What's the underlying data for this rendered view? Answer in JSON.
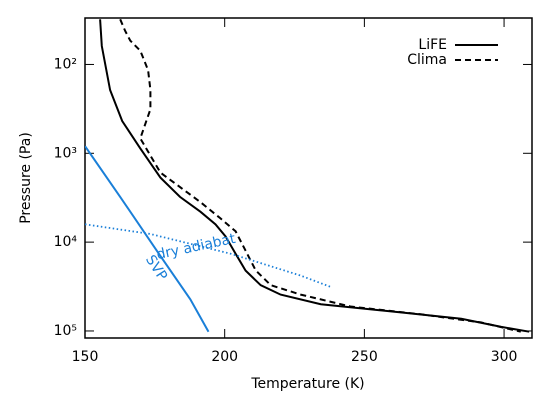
{
  "chart_data": {
    "type": "line",
    "xlabel": "Temperature (K)",
    "ylabel": "Pressure (Pa)",
    "xlim": [
      150,
      310
    ],
    "xticks": [
      150,
      200,
      250,
      300
    ],
    "ylim": [
      30,
      120000
    ],
    "yscale": "log",
    "y_inverted": true,
    "yticks": [
      {
        "value": 100,
        "label": "10²"
      },
      {
        "value": 1000,
        "label": "10³"
      },
      {
        "value": 10000,
        "label": "10⁴"
      },
      {
        "value": 100000,
        "label": "10⁵"
      }
    ],
    "legend": "upper right",
    "series": [
      {
        "name": "LiFE",
        "color": "#000000",
        "style": "solid",
        "x": [
          155.4,
          156,
          159,
          163.3,
          169.8,
          177,
          184,
          191.3,
          196.7,
          200.3,
          203.9,
          207.5,
          212.9,
          220,
          234.4,
          263,
          284.7,
          299,
          309
        ],
        "values": [
          31,
          62,
          194,
          433,
          880,
          1880,
          3100,
          4550,
          6300,
          8600,
          13500,
          20900,
          30500,
          39000,
          50000,
          61800,
          73000,
          90000,
          102000
        ]
      },
      {
        "name": "Clima",
        "color": "#000000",
        "style": "dashed",
        "x": [
          162.6,
          164.4,
          166.2,
          169.8,
          172.6,
          173.4,
          173.4,
          171.6,
          169.8,
          177,
          191.3,
          198.5,
          203.9,
          207.5,
          211.1,
          216.5,
          227.2,
          245,
          270.2,
          291.7,
          306
        ],
        "values": [
          31,
          42,
          54,
          70,
          116,
          193,
          320,
          467,
          680,
          1650,
          3540,
          5400,
          7560,
          12500,
          20800,
          30500,
          39000,
          53000,
          65000,
          80000,
          102000
        ]
      }
    ],
    "curves": [
      {
        "color": "#1a7fd8",
        "style": "dotted",
        "x": [
          150,
          173.4,
          202.1,
          227.2,
          238
        ],
        "values": [
          6300,
          8100,
          13500,
          23800,
          32000
        ]
      },
      {
        "color": "#1a7fd8",
        "style": "solid",
        "x": [
          150,
          162.6,
          176.9,
          187.7,
          194.2
        ],
        "values": [
          830,
          3100,
          14200,
          44000,
          102000
        ]
      }
    ],
    "annotations": [
      {
        "text": "dry adiabat",
        "color": "#1a7fd8"
      },
      {
        "text": "SVP",
        "color": "#1a7fd8"
      }
    ]
  }
}
